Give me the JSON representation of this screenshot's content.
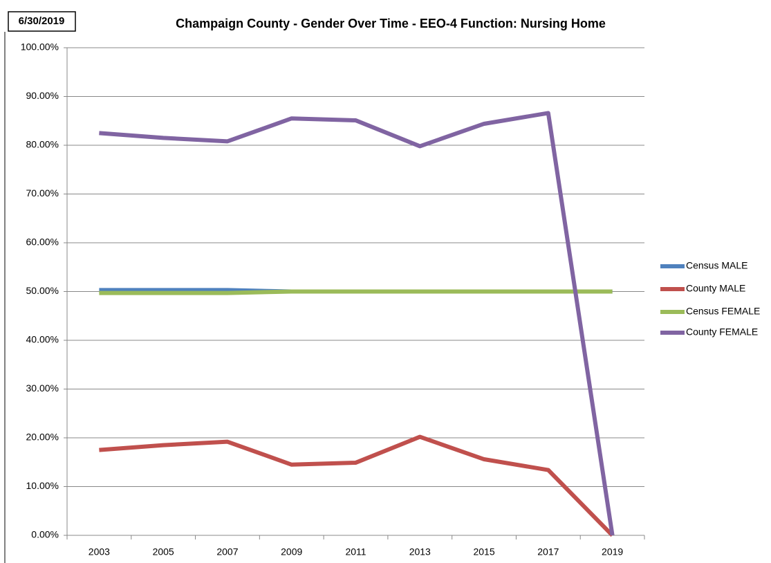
{
  "chart_data": {
    "type": "line",
    "date": "6/30/2019",
    "title": "Champaign County - Gender Over Time - EEO-4 Function: Nursing Home",
    "categories": [
      "2003",
      "2005",
      "2007",
      "2009",
      "2011",
      "2013",
      "2015",
      "2017",
      "2019"
    ],
    "series": [
      {
        "name": "Census MALE",
        "color": "#4f81bd",
        "values": [
          50.3,
          50.3,
          50.3,
          50.0,
          50.0,
          50.0,
          50.0,
          50.0,
          50.0
        ]
      },
      {
        "name": "County MALE",
        "color": "#c0504d",
        "values": [
          17.5,
          18.5,
          19.2,
          14.5,
          14.9,
          20.2,
          15.6,
          13.4,
          0
        ]
      },
      {
        "name": "Census FEMALE",
        "color": "#9bbb59",
        "values": [
          49.7,
          49.7,
          49.7,
          50.0,
          50.0,
          50.0,
          50.0,
          50.0,
          50.0
        ]
      },
      {
        "name": "County FEMALE",
        "color": "#8064a2",
        "values": [
          82.5,
          81.5,
          80.8,
          85.5,
          85.1,
          79.8,
          84.4,
          86.6,
          0
        ]
      }
    ],
    "ylim": [
      0,
      100
    ],
    "yticks": [
      {
        "value": 0,
        "label": "0.00%"
      },
      {
        "value": 10,
        "label": "10.00%"
      },
      {
        "value": 20,
        "label": "20.00%"
      },
      {
        "value": 30,
        "label": "30.00%"
      },
      {
        "value": 40,
        "label": "40.00%"
      },
      {
        "value": 50,
        "label": "50.00%"
      },
      {
        "value": 60,
        "label": "60.00%"
      },
      {
        "value": 70,
        "label": "70.00%"
      },
      {
        "value": 80,
        "label": "80.00%"
      },
      {
        "value": 90,
        "label": "90.00%"
      },
      {
        "value": 100,
        "label": "100.00%"
      }
    ],
    "grid": true,
    "legend": "right"
  }
}
